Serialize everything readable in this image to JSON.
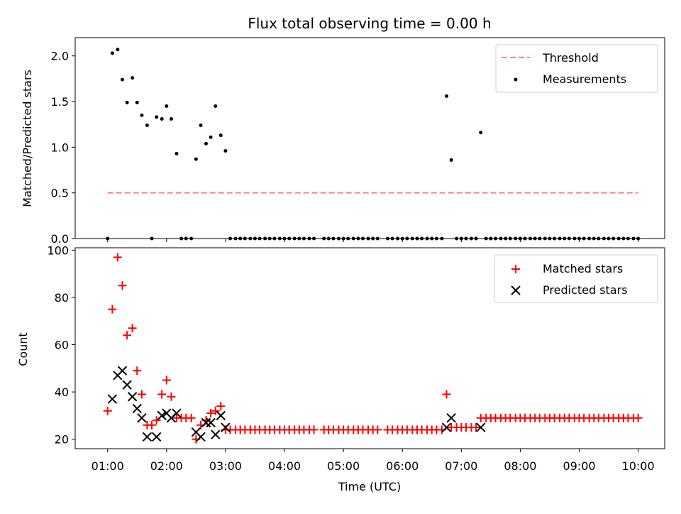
{
  "chart_data": {
    "title": "Flux total observing time = 0.00 h",
    "xlabel": "Time (UTC)",
    "x_ticks": [
      "01:00",
      "02:00",
      "03:00",
      "04:00",
      "05:00",
      "06:00",
      "07:00",
      "08:00",
      "09:00",
      "10:00"
    ],
    "xlim_hours": [
      0.45,
      10.45
    ],
    "panels": [
      {
        "type": "scatter",
        "ylabel": "Matched/Predicted stars",
        "ylim": [
          0,
          2.2
        ],
        "y_ticks": [
          "0.0",
          "0.5",
          "1.0",
          "1.5",
          "2.0"
        ],
        "y_tick_values": [
          0,
          0.5,
          1.0,
          1.5,
          2.0
        ],
        "legend_position": "upper-right",
        "threshold": {
          "name": "Threshold",
          "value": 0.5,
          "x_range": [
            1.0,
            10.0
          ],
          "color": "#ff7f7f"
        },
        "series": [
          {
            "name": "Measurements",
            "color": "#000000",
            "x": [
              1.0,
              1.08,
              1.17,
              1.25,
              1.33,
              1.42,
              1.5,
              1.58,
              1.67,
              1.75,
              1.83,
              1.92,
              2.0,
              2.08,
              2.17,
              2.25,
              2.33,
              2.42,
              2.5,
              2.58,
              2.67,
              2.75,
              2.83,
              2.92,
              3.0,
              3.08,
              3.17,
              3.25,
              3.33,
              3.42,
              3.5,
              3.58,
              3.67,
              3.75,
              3.83,
              3.92,
              4.0,
              4.08,
              4.17,
              4.25,
              4.33,
              4.42,
              4.5,
              4.67,
              4.75,
              4.83,
              4.92,
              5.0,
              5.08,
              5.17,
              5.25,
              5.33,
              5.42,
              5.5,
              5.58,
              5.75,
              5.83,
              5.92,
              6.0,
              6.08,
              6.17,
              6.25,
              6.33,
              6.42,
              6.5,
              6.58,
              6.67,
              6.75,
              6.83,
              6.92,
              7.0,
              7.08,
              7.17,
              7.25,
              7.33,
              7.42,
              7.5,
              7.58,
              7.67,
              7.75,
              7.83,
              7.92,
              8.0,
              8.08,
              8.17,
              8.25,
              8.33,
              8.42,
              8.5,
              8.58,
              8.67,
              8.75,
              8.83,
              8.92,
              9.0,
              9.08,
              9.17,
              9.25,
              9.33,
              9.42,
              9.5,
              9.58,
              9.67,
              9.75,
              9.83,
              9.92,
              10.0
            ],
            "y": [
              0,
              2.03,
              2.07,
              1.74,
              1.49,
              1.76,
              1.49,
              1.35,
              1.24,
              0,
              1.33,
              1.31,
              1.45,
              1.31,
              0.93,
              0,
              0,
              0,
              0.87,
              1.24,
              1.04,
              1.11,
              1.45,
              1.13,
              0.96,
              0,
              0,
              0,
              0,
              0,
              0,
              0,
              0,
              0,
              0,
              0,
              0,
              0,
              0,
              0,
              0,
              0,
              0,
              0,
              0,
              0,
              0,
              0,
              0,
              0,
              0,
              0,
              0,
              0,
              0,
              0,
              0,
              0,
              0,
              0,
              0,
              0,
              0,
              0,
              0,
              0,
              0,
              1.56,
              0.86,
              0,
              0,
              0,
              0,
              0,
              1.16,
              0,
              0,
              0,
              0,
              0,
              0,
              0,
              0,
              0,
              0,
              0,
              0,
              0,
              0,
              0,
              0,
              0,
              0,
              0,
              0,
              0,
              0,
              0,
              0,
              0,
              0,
              0,
              0,
              0,
              0,
              0,
              0
            ]
          }
        ]
      },
      {
        "type": "scatter",
        "ylabel": "Count",
        "ylim": [
          16,
          101
        ],
        "y_ticks": [
          "20",
          "40",
          "60",
          "80",
          "100"
        ],
        "y_tick_values": [
          20,
          40,
          60,
          80,
          100
        ],
        "legend_position": "upper-right",
        "series": [
          {
            "name": "Matched stars",
            "color": "#ff0000",
            "marker": "plus",
            "x": [
              1.0,
              1.08,
              1.17,
              1.25,
              1.33,
              1.42,
              1.5,
              1.58,
              1.67,
              1.75,
              1.83,
              1.92,
              2.0,
              2.08,
              2.17,
              2.25,
              2.33,
              2.42,
              2.5,
              2.58,
              2.67,
              2.75,
              2.83,
              2.92,
              3.0,
              3.08,
              3.17,
              3.25,
              3.33,
              3.42,
              3.5,
              3.58,
              3.67,
              3.75,
              3.83,
              3.92,
              4.0,
              4.08,
              4.17,
              4.25,
              4.33,
              4.42,
              4.5,
              4.67,
              4.75,
              4.83,
              4.92,
              5.0,
              5.08,
              5.17,
              5.25,
              5.33,
              5.42,
              5.5,
              5.58,
              5.75,
              5.83,
              5.92,
              6.0,
              6.08,
              6.17,
              6.25,
              6.33,
              6.42,
              6.5,
              6.58,
              6.67,
              6.75,
              6.83,
              6.92,
              7.0,
              7.08,
              7.17,
              7.25,
              7.33,
              7.42,
              7.5,
              7.58,
              7.67,
              7.75,
              7.83,
              7.92,
              8.0,
              8.08,
              8.17,
              8.25,
              8.33,
              8.42,
              8.5,
              8.58,
              8.67,
              8.75,
              8.83,
              8.92,
              9.0,
              9.08,
              9.17,
              9.25,
              9.33,
              9.42,
              9.5,
              9.58,
              9.67,
              9.75,
              9.83,
              9.92,
              10.0
            ],
            "y": [
              32,
              75,
              97,
              85,
              64,
              67,
              49,
              39,
              26,
              26,
              28,
              39,
              45,
              38,
              29,
              29,
              29,
              29,
              20,
              26,
              28,
              31,
              32,
              34,
              24,
              24,
              24,
              24,
              24,
              24,
              24,
              24,
              24,
              24,
              24,
              24,
              24,
              24,
              24,
              24,
              24,
              24,
              24,
              24,
              24,
              24,
              24,
              24,
              24,
              24,
              24,
              24,
              24,
              24,
              24,
              24,
              24,
              24,
              24,
              24,
              24,
              24,
              24,
              24,
              24,
              24,
              24,
              39,
              25,
              25,
              25,
              25,
              25,
              25,
              29,
              29,
              29,
              29,
              29,
              29,
              29,
              29,
              29,
              29,
              29,
              29,
              29,
              29,
              29,
              29,
              29,
              29,
              29,
              29,
              29,
              29,
              29,
              29,
              29,
              29,
              29,
              29,
              29,
              29,
              29,
              29,
              29
            ]
          },
          {
            "name": "Predicted stars",
            "color": "#000000",
            "marker": "x",
            "x": [
              1.08,
              1.17,
              1.25,
              1.33,
              1.42,
              1.5,
              1.58,
              1.67,
              1.83,
              1.92,
              2.0,
              2.08,
              2.17,
              2.5,
              2.58,
              2.67,
              2.75,
              2.83,
              2.92,
              3.0,
              6.75,
              6.83,
              7.33
            ],
            "y": [
              37,
              47,
              49,
              43,
              38,
              33,
              29,
              21,
              21,
              30,
              31,
              29,
              31,
              23,
              21,
              27,
              27,
              22,
              30,
              25,
              25,
              29,
              25
            ]
          }
        ]
      }
    ]
  }
}
